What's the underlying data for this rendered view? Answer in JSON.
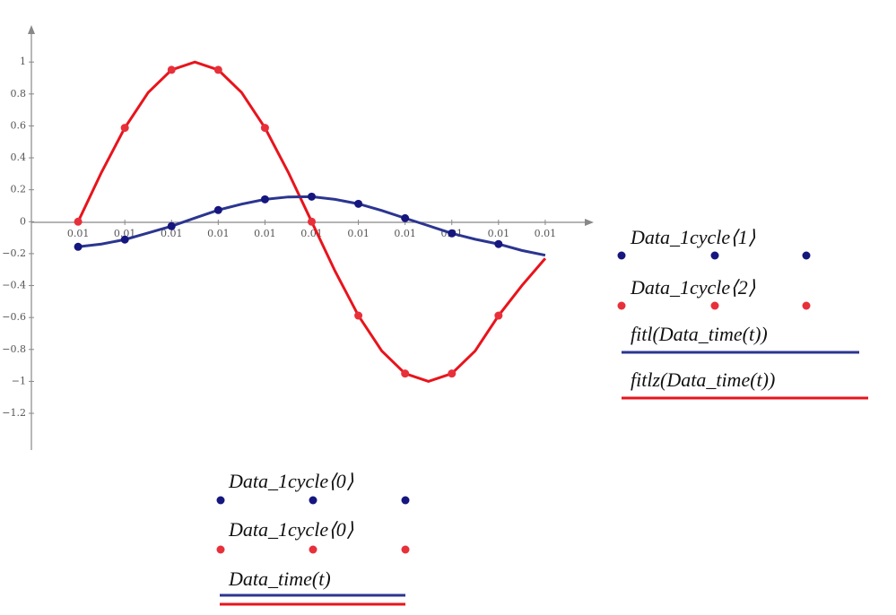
{
  "chart_data": {
    "type": "scatter",
    "xlim": [
      0.0099,
      0.0111
    ],
    "ylim": [
      -1.43,
      1.22
    ],
    "xticks": [
      {
        "value": 0.01,
        "label": "0.01"
      },
      {
        "value": 0.0101,
        "label": "0.01"
      },
      {
        "value": 0.0102,
        "label": "0.01"
      },
      {
        "value": 0.0103,
        "label": "0.01"
      },
      {
        "value": 0.0104,
        "label": "0.01"
      },
      {
        "value": 0.0105,
        "label": "0.01"
      },
      {
        "value": 0.0106,
        "label": "0.01"
      },
      {
        "value": 0.0107,
        "label": "0.01"
      },
      {
        "value": 0.0108,
        "label": "0.01"
      },
      {
        "value": 0.0109,
        "label": "0.01"
      },
      {
        "value": 0.011,
        "label": "0.01"
      }
    ],
    "yticks": [
      {
        "value": -1.2,
        "label": "−1.2"
      },
      {
        "value": -1,
        "label": "−1"
      },
      {
        "value": -0.8,
        "label": "−0.8"
      },
      {
        "value": -0.6,
        "label": "−0.6"
      },
      {
        "value": -0.4,
        "label": "−0.4"
      },
      {
        "value": -0.2,
        "label": "−0.2"
      },
      0,
      0.2,
      0.4,
      0.6,
      0.8,
      1
    ],
    "x_axis_labels": [
      "Data_1cycle⟨0⟩",
      "Data_1cycle⟨0⟩",
      "Data_time(t)"
    ],
    "series": [
      {
        "name": "Data_1cycle⟨1⟩",
        "color": "#16167f",
        "mode": "markers",
        "x": [
          0.01,
          0.0101,
          0.0102,
          0.0103,
          0.0104,
          0.0105,
          0.0106,
          0.0107,
          0.0108,
          0.0109
        ],
        "values": [
          -0.157,
          -0.112,
          -0.028,
          0.073,
          0.14,
          0.157,
          0.112,
          0.022,
          -0.073,
          -0.14
        ]
      },
      {
        "name": "Data_1cycle⟨2⟩",
        "color": "#e8303a",
        "mode": "markers",
        "x": [
          0.01,
          0.0101,
          0.0102,
          0.0103,
          0.0104,
          0.0105,
          0.0106,
          0.0107,
          0.0108,
          0.0109
        ],
        "values": [
          0,
          0.588,
          0.951,
          0.951,
          0.588,
          0,
          -0.588,
          -0.951,
          -0.951,
          -0.588
        ]
      },
      {
        "name": "fitl(Data_time(t))",
        "color": "#2b3590",
        "mode": "lines",
        "x": [
          0.01,
          0.01005,
          0.0101,
          0.01015,
          0.0102,
          0.01025,
          0.0103,
          0.01035,
          0.0104,
          0.01045,
          0.0105,
          0.01055,
          0.0106,
          0.01065,
          0.0107,
          0.01075,
          0.0108,
          0.01085,
          0.0109,
          0.01095,
          0.011
        ],
        "values": [
          -0.157,
          -0.14,
          -0.112,
          -0.07,
          -0.028,
          0.023,
          0.073,
          0.11,
          0.14,
          0.155,
          0.157,
          0.14,
          0.112,
          0.07,
          0.022,
          -0.025,
          -0.073,
          -0.11,
          -0.14,
          -0.18,
          -0.21
        ]
      },
      {
        "name": "fitlz(Data_time(t))",
        "color": "#e8141c",
        "mode": "lines",
        "x": [
          0.01,
          0.01005,
          0.0101,
          0.01015,
          0.0102,
          0.01025,
          0.0103,
          0.01035,
          0.0104,
          0.01045,
          0.0105,
          0.01055,
          0.0106,
          0.01065,
          0.0107,
          0.01075,
          0.0108,
          0.01085,
          0.0109,
          0.01095,
          0.011
        ],
        "values": [
          0,
          0.309,
          0.588,
          0.809,
          0.951,
          1,
          0.951,
          0.809,
          0.588,
          0.309,
          0,
          -0.309,
          -0.588,
          -0.809,
          -0.951,
          -1,
          -0.951,
          -0.809,
          -0.588,
          -0.4,
          -0.23
        ]
      }
    ]
  }
}
